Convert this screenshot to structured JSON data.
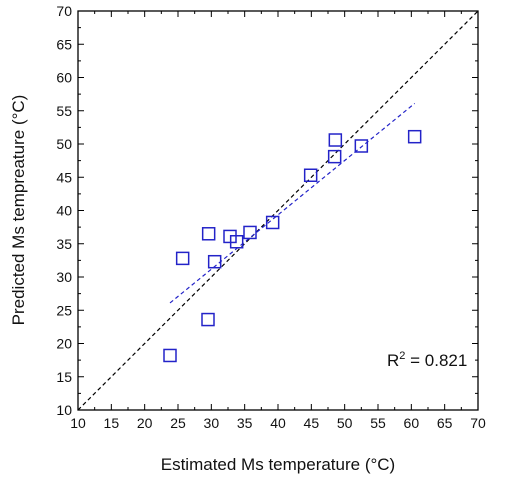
{
  "chart_data": {
    "type": "scatter",
    "xlabel": "Estimated Ms temperature (°C)",
    "ylabel": "Predicted Ms tempreature (°C)",
    "xlim": [
      10,
      70
    ],
    "ylim": [
      10,
      70
    ],
    "x_ticks": [
      "10",
      "15",
      "20",
      "25",
      "30",
      "35",
      "40",
      "45",
      "50",
      "55",
      "60",
      "65",
      "70"
    ],
    "y_ticks": [
      "10",
      "15",
      "20",
      "25",
      "30",
      "35",
      "40",
      "45",
      "50",
      "55",
      "60",
      "65",
      "70"
    ],
    "grid": false,
    "series": [
      {
        "points": [
          {
            "x": 23.8,
            "y": 18.2
          },
          {
            "x": 25.7,
            "y": 32.8
          },
          {
            "x": 29.5,
            "y": 23.6
          },
          {
            "x": 29.6,
            "y": 36.5
          },
          {
            "x": 30.5,
            "y": 32.3
          },
          {
            "x": 32.8,
            "y": 36.1
          },
          {
            "x": 33.8,
            "y": 35.3
          },
          {
            "x": 35.8,
            "y": 36.7
          },
          {
            "x": 39.2,
            "y": 38.2
          },
          {
            "x": 44.9,
            "y": 45.3
          },
          {
            "x": 48.5,
            "y": 48.1
          },
          {
            "x": 48.6,
            "y": 50.6
          },
          {
            "x": 52.5,
            "y": 49.7
          },
          {
            "x": 60.5,
            "y": 51.1
          }
        ],
        "marker": "open-square",
        "color": "#2323c8"
      }
    ],
    "reference_line": {
      "from": [
        10,
        10
      ],
      "to": [
        70,
        70
      ],
      "style": "dashed",
      "color": "#000000"
    },
    "fit_line": {
      "from": [
        23.8,
        26.1
      ],
      "to": [
        60.5,
        56.1
      ],
      "style": "dashed",
      "color": "#2323c8"
    },
    "annotation": {
      "base": "R",
      "superscript": "2",
      "rest": " = 0.821"
    }
  }
}
